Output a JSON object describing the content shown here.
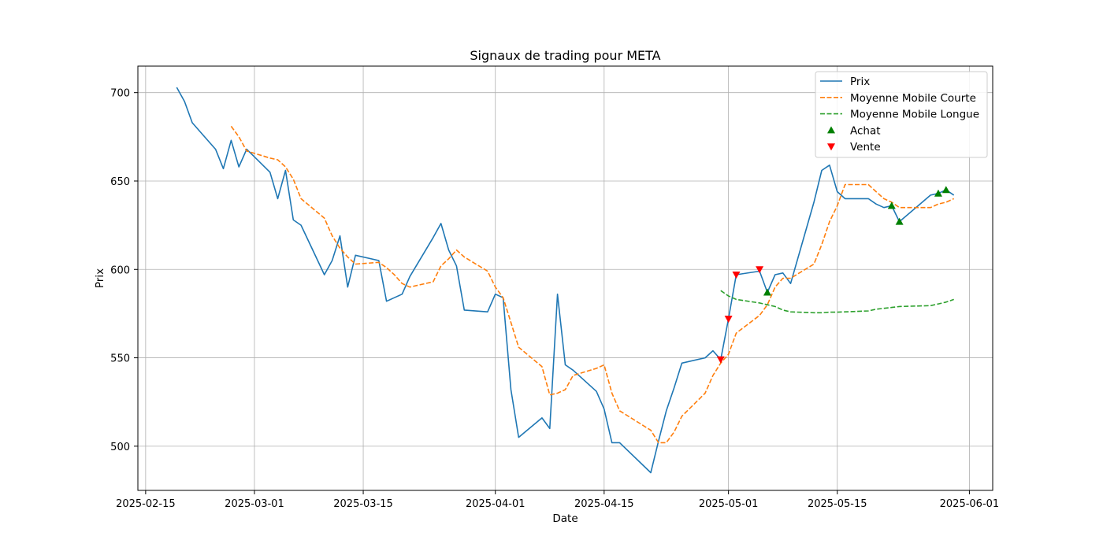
{
  "chart_data": {
    "type": "line",
    "title": "Signaux de trading pour META",
    "xlabel": "Date",
    "ylabel": "Prix",
    "x_ticks": [
      "2025-02-15",
      "2025-03-01",
      "2025-03-15",
      "2025-04-01",
      "2025-04-15",
      "2025-05-01",
      "2025-05-15",
      "2025-06-01"
    ],
    "y_ticks": [
      500,
      550,
      600,
      650,
      700
    ],
    "ylim": [
      475,
      715
    ],
    "xlim": [
      "2025-02-14",
      "2025-06-04"
    ],
    "grid": true,
    "legend_position": "top-right",
    "colors": {
      "price": "#1f77b4",
      "ma_short": "#ff7f0e",
      "ma_long": "#2ca02c",
      "buy": "#008000",
      "sell": "#ff0000",
      "grid": "#b0b0b0"
    },
    "series": [
      {
        "name": "Prix",
        "style": "solid",
        "points": [
          [
            "2025-02-19",
            703
          ],
          [
            "2025-02-20",
            695
          ],
          [
            "2025-02-21",
            683
          ],
          [
            "2025-02-24",
            668
          ],
          [
            "2025-02-25",
            657
          ],
          [
            "2025-02-26",
            673
          ],
          [
            "2025-02-27",
            658
          ],
          [
            "2025-02-28",
            668
          ],
          [
            "2025-03-03",
            655
          ],
          [
            "2025-03-04",
            640
          ],
          [
            "2025-03-05",
            656
          ],
          [
            "2025-03-06",
            628
          ],
          [
            "2025-03-07",
            625
          ],
          [
            "2025-03-10",
            597
          ],
          [
            "2025-03-11",
            605
          ],
          [
            "2025-03-12",
            619
          ],
          [
            "2025-03-13",
            590
          ],
          [
            "2025-03-14",
            608
          ],
          [
            "2025-03-17",
            605
          ],
          [
            "2025-03-18",
            582
          ],
          [
            "2025-03-19",
            584
          ],
          [
            "2025-03-20",
            586
          ],
          [
            "2025-03-21",
            596
          ],
          [
            "2025-03-24",
            618
          ],
          [
            "2025-03-25",
            626
          ],
          [
            "2025-03-26",
            611
          ],
          [
            "2025-03-27",
            602
          ],
          [
            "2025-03-28",
            577
          ],
          [
            "2025-03-31",
            576
          ],
          [
            "2025-04-01",
            586
          ],
          [
            "2025-04-02",
            584
          ],
          [
            "2025-04-03",
            532
          ],
          [
            "2025-04-04",
            505
          ],
          [
            "2025-04-07",
            516
          ],
          [
            "2025-04-08",
            510
          ],
          [
            "2025-04-09",
            586
          ],
          [
            "2025-04-10",
            546
          ],
          [
            "2025-04-11",
            543
          ],
          [
            "2025-04-14",
            531
          ],
          [
            "2025-04-15",
            521
          ],
          [
            "2025-04-16",
            502
          ],
          [
            "2025-04-17",
            502
          ],
          [
            "2025-04-21",
            485
          ],
          [
            "2025-04-22",
            503
          ],
          [
            "2025-04-23",
            520
          ],
          [
            "2025-04-24",
            533
          ],
          [
            "2025-04-25",
            547
          ],
          [
            "2025-04-28",
            550
          ],
          [
            "2025-04-29",
            554
          ],
          [
            "2025-04-30",
            549
          ],
          [
            "2025-05-01",
            572
          ],
          [
            "2025-05-02",
            597
          ],
          [
            "2025-05-05",
            599
          ],
          [
            "2025-05-06",
            587
          ],
          [
            "2025-05-07",
            597
          ],
          [
            "2025-05-08",
            598
          ],
          [
            "2025-05-09",
            592
          ],
          [
            "2025-05-12",
            638
          ],
          [
            "2025-05-13",
            656
          ],
          [
            "2025-05-14",
            659
          ],
          [
            "2025-05-15",
            644
          ],
          [
            "2025-05-16",
            640
          ],
          [
            "2025-05-19",
            640
          ],
          [
            "2025-05-20",
            637
          ],
          [
            "2025-05-21",
            635
          ],
          [
            "2025-05-22",
            636
          ],
          [
            "2025-05-23",
            627
          ],
          [
            "2025-05-27",
            642
          ],
          [
            "2025-05-28",
            643
          ],
          [
            "2025-05-29",
            645
          ],
          [
            "2025-05-30",
            642
          ]
        ]
      },
      {
        "name": "Moyenne Mobile Courte",
        "style": "dashed",
        "points": [
          [
            "2025-02-26",
            681
          ],
          [
            "2025-02-27",
            675
          ],
          [
            "2025-02-28",
            667
          ],
          [
            "2025-03-03",
            663
          ],
          [
            "2025-03-04",
            662
          ],
          [
            "2025-03-05",
            658
          ],
          [
            "2025-03-06",
            651
          ],
          [
            "2025-03-07",
            640
          ],
          [
            "2025-03-10",
            629
          ],
          [
            "2025-03-11",
            619
          ],
          [
            "2025-03-12",
            612
          ],
          [
            "2025-03-13",
            607
          ],
          [
            "2025-03-14",
            603
          ],
          [
            "2025-03-17",
            604
          ],
          [
            "2025-03-18",
            601
          ],
          [
            "2025-03-19",
            597
          ],
          [
            "2025-03-20",
            592
          ],
          [
            "2025-03-21",
            590
          ],
          [
            "2025-03-24",
            593
          ],
          [
            "2025-03-25",
            602
          ],
          [
            "2025-03-26",
            606
          ],
          [
            "2025-03-27",
            611
          ],
          [
            "2025-03-28",
            607
          ],
          [
            "2025-03-31",
            599
          ],
          [
            "2025-04-01",
            590
          ],
          [
            "2025-04-02",
            584
          ],
          [
            "2025-04-03",
            570
          ],
          [
            "2025-04-04",
            556
          ],
          [
            "2025-04-07",
            545
          ],
          [
            "2025-04-08",
            529
          ],
          [
            "2025-04-09",
            530
          ],
          [
            "2025-04-10",
            532
          ],
          [
            "2025-04-11",
            540
          ],
          [
            "2025-04-14",
            544
          ],
          [
            "2025-04-15",
            546
          ],
          [
            "2025-04-16",
            530
          ],
          [
            "2025-04-17",
            520
          ],
          [
            "2025-04-21",
            509
          ],
          [
            "2025-04-22",
            502
          ],
          [
            "2025-04-23",
            502
          ],
          [
            "2025-04-24",
            508
          ],
          [
            "2025-04-25",
            517
          ],
          [
            "2025-04-28",
            530
          ],
          [
            "2025-04-29",
            540
          ],
          [
            "2025-04-30",
            547
          ],
          [
            "2025-05-01",
            552
          ],
          [
            "2025-05-02",
            564
          ],
          [
            "2025-05-05",
            574
          ],
          [
            "2025-05-06",
            580
          ],
          [
            "2025-05-07",
            590
          ],
          [
            "2025-05-08",
            595
          ],
          [
            "2025-05-09",
            595
          ],
          [
            "2025-05-12",
            603
          ],
          [
            "2025-05-13",
            614
          ],
          [
            "2025-05-14",
            627
          ],
          [
            "2025-05-15",
            636
          ],
          [
            "2025-05-16",
            648
          ],
          [
            "2025-05-19",
            648
          ],
          [
            "2025-05-20",
            644
          ],
          [
            "2025-05-21",
            640
          ],
          [
            "2025-05-22",
            638
          ],
          [
            "2025-05-23",
            635
          ],
          [
            "2025-05-27",
            635
          ],
          [
            "2025-05-28",
            637
          ],
          [
            "2025-05-29",
            638
          ],
          [
            "2025-05-30",
            640
          ]
        ]
      },
      {
        "name": "Moyenne Mobile Longue",
        "style": "dashed",
        "points": [
          [
            "2025-04-30",
            588
          ],
          [
            "2025-05-01",
            585
          ],
          [
            "2025-05-02",
            583
          ],
          [
            "2025-05-05",
            581
          ],
          [
            "2025-05-06",
            580
          ],
          [
            "2025-05-07",
            579
          ],
          [
            "2025-05-08",
            577
          ],
          [
            "2025-05-09",
            576
          ],
          [
            "2025-05-12",
            575.5
          ],
          [
            "2025-05-13",
            575.5
          ],
          [
            "2025-05-14",
            575.8
          ],
          [
            "2025-05-15",
            575.8
          ],
          [
            "2025-05-16",
            576
          ],
          [
            "2025-05-19",
            576.5
          ],
          [
            "2025-05-20",
            577.5
          ],
          [
            "2025-05-21",
            578
          ],
          [
            "2025-05-22",
            578.5
          ],
          [
            "2025-05-23",
            579
          ],
          [
            "2025-05-27",
            579.5
          ],
          [
            "2025-05-28",
            580.5
          ],
          [
            "2025-05-29",
            581.5
          ],
          [
            "2025-05-30",
            583
          ]
        ]
      }
    ],
    "markers": [
      {
        "name": "Achat",
        "shape": "triangle-up",
        "points": [
          [
            "2025-05-06",
            587
          ],
          [
            "2025-05-22",
            636
          ],
          [
            "2025-05-23",
            627
          ],
          [
            "2025-05-28",
            643
          ],
          [
            "2025-05-29",
            645
          ]
        ]
      },
      {
        "name": "Vente",
        "shape": "triangle-down",
        "points": [
          [
            "2025-04-30",
            549
          ],
          [
            "2025-05-01",
            572
          ],
          [
            "2025-05-02",
            597
          ],
          [
            "2025-05-05",
            600
          ]
        ]
      }
    ]
  }
}
